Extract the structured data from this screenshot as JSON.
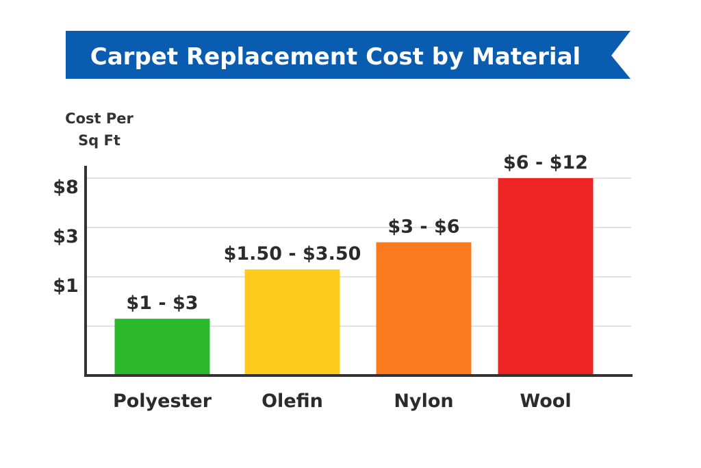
{
  "chart_data": {
    "type": "bar",
    "title": "Carpet Replacement Cost by Material",
    "ylabel_lines": [
      "Cost Per",
      "Sq Ft"
    ],
    "xlabel": "",
    "categories": [
      "Polyester",
      "Olefin",
      "Nylon",
      "Wool"
    ],
    "values": [
      2.3,
      4.3,
      5.4,
      8.0
    ],
    "data_labels": [
      "$1 - $3",
      "$1.50 - $3.50",
      "$3 - $6",
      "$6 - $12"
    ],
    "colors": [
      "#2db92d",
      "#fccb1e",
      "#fb7a1e",
      "#ee2424"
    ],
    "ylim": [
      0,
      8.6
    ],
    "gridlines": [
      2,
      4,
      6,
      8
    ],
    "y_ticks": [
      {
        "value": 8,
        "label": "$8"
      },
      {
        "value": 6,
        "label": "$3"
      },
      {
        "value": 4,
        "label": "$1"
      }
    ],
    "grid": true,
    "legend": "none",
    "banner_color": "#0a5cb0"
  }
}
